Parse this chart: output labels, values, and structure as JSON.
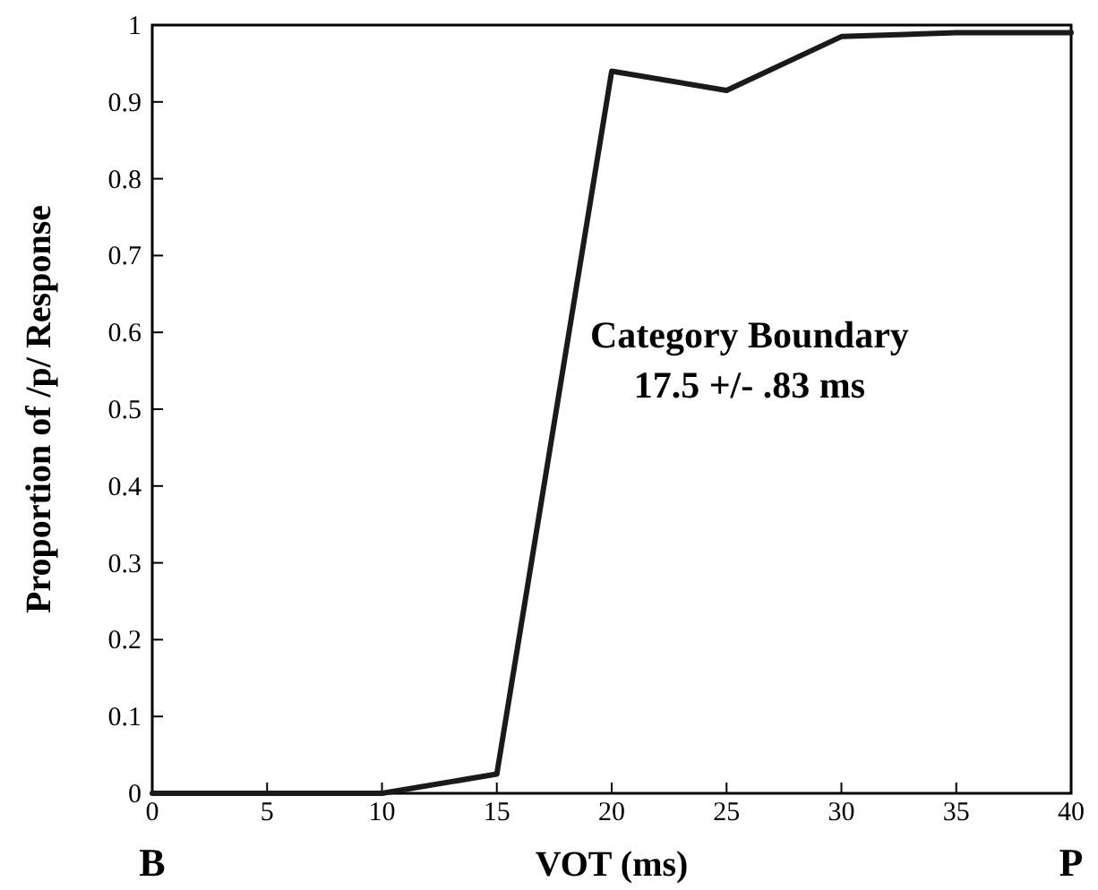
{
  "chart_data": {
    "type": "line",
    "xlabel": "VOT (ms)",
    "ylabel": "Proportion of /p/ Response",
    "x": [
      0,
      5,
      10,
      15,
      20,
      25,
      30,
      35,
      40
    ],
    "series": [
      {
        "color": "#1a1a1a",
        "values": [
          0,
          0,
          0,
          0.025,
          0.94,
          0.915,
          0.985,
          0.99,
          0.99
        ]
      }
    ],
    "xlim": [
      0,
      40
    ],
    "xticks": [
      0,
      5,
      10,
      15,
      20,
      25,
      30,
      35,
      40
    ],
    "ylim": [
      0,
      1
    ],
    "yticks": [
      0,
      0.1,
      0.2,
      0.3,
      0.4,
      0.5,
      0.6,
      0.7,
      0.8,
      0.9,
      1
    ],
    "grid": false,
    "marker": "none",
    "line_style": "solid",
    "annotations": [
      "B",
      "P",
      "Category Boundary\n17.5 +/- .83 ms"
    ]
  }
}
